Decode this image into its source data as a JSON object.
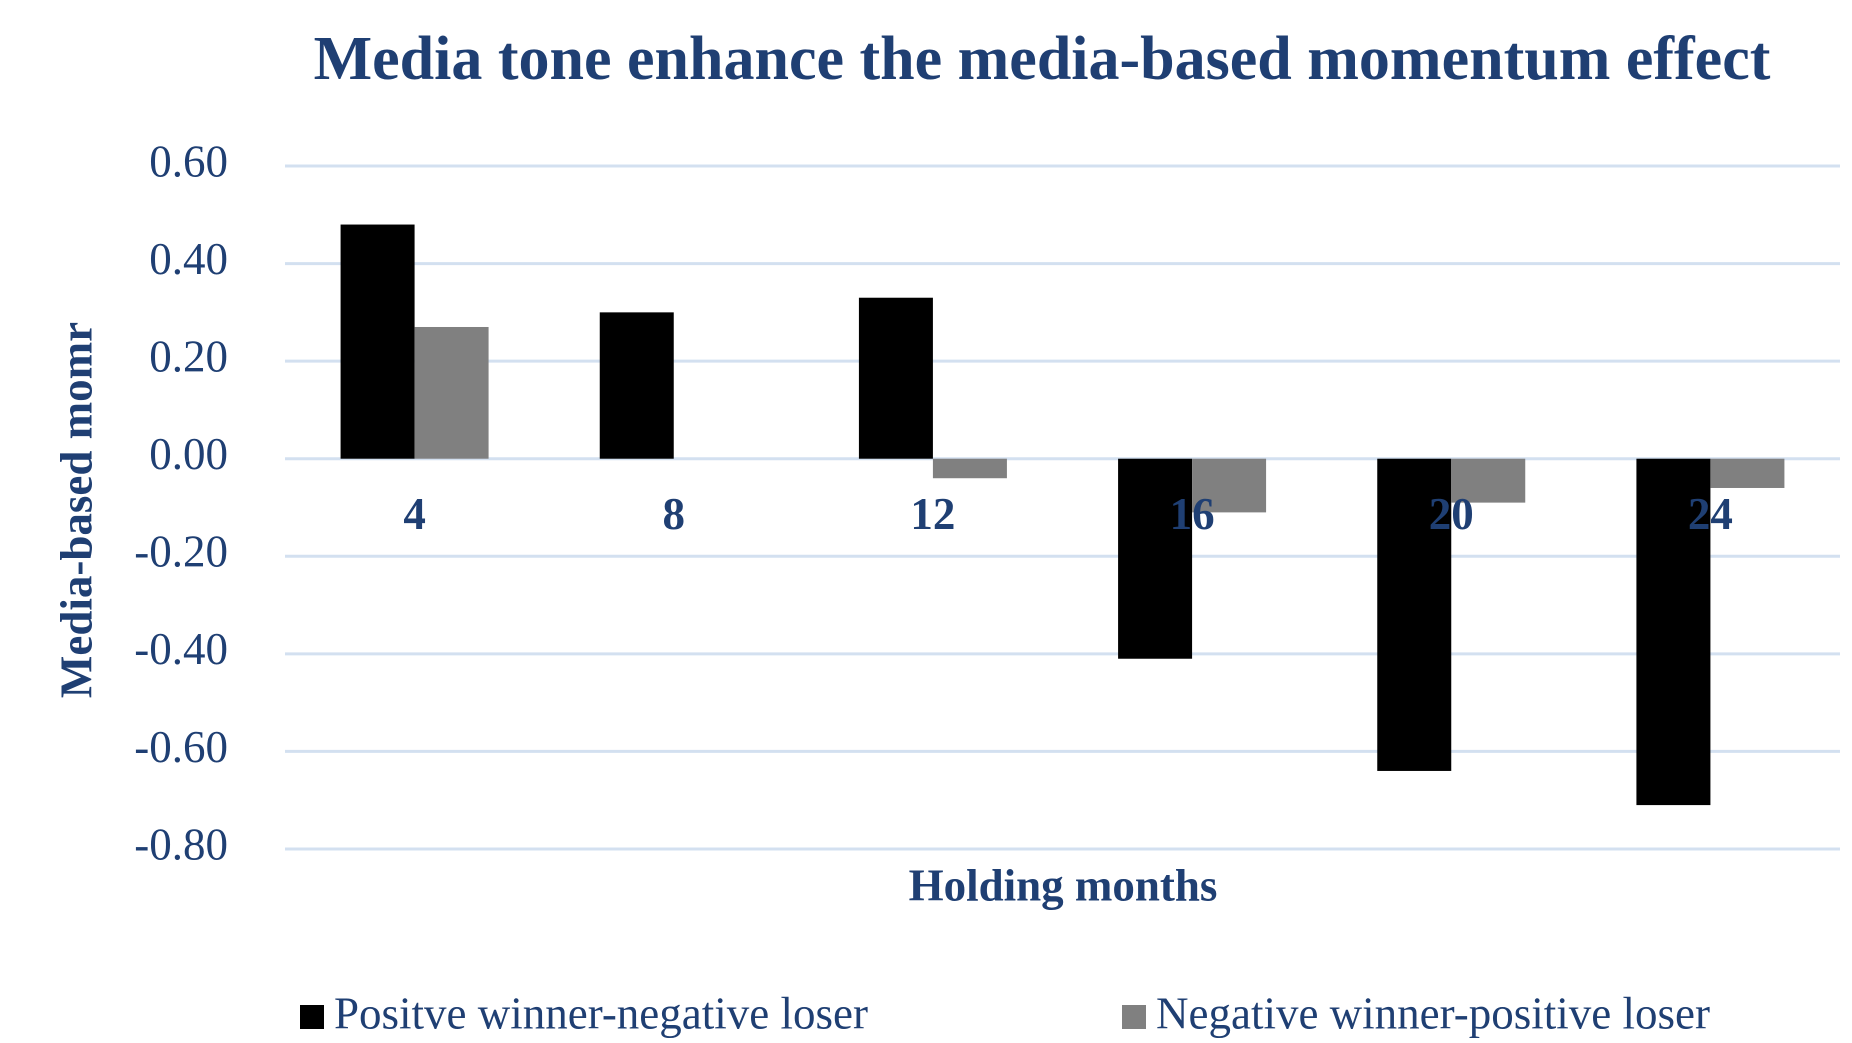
{
  "chart_data": {
    "type": "bar",
    "title": "Media tone enhance the media-based momentum effect",
    "x_label": "Holding months",
    "y_label": "Media-based momr",
    "categories": [
      "4",
      "8",
      "12",
      "16",
      "20",
      "24"
    ],
    "series": [
      {
        "name": "Positve winner-negative loser",
        "color": "#000000",
        "values": [
          0.48,
          0.3,
          0.33,
          -0.41,
          -0.64,
          -0.71
        ]
      },
      {
        "name": "Negative winner-positive loser",
        "color": "#808080",
        "values": [
          0.27,
          0,
          -0.04,
          -0.11,
          -0.09,
          -0.06
        ]
      }
    ],
    "ylim": [
      -0.8,
      0.6
    ],
    "yticks": [
      {
        "value": -0.8,
        "label": "-0.80"
      },
      {
        "value": -0.6,
        "label": "-0.60"
      },
      {
        "value": -0.4,
        "label": "-0.40"
      },
      {
        "value": -0.2,
        "label": "-0.20"
      },
      {
        "value": 0,
        "label": "0.00"
      },
      {
        "value": 0.2,
        "label": "0.20"
      },
      {
        "value": 0.4,
        "label": "0.40"
      },
      {
        "value": 0.6,
        "label": "0.60"
      }
    ],
    "grid": true,
    "legend": "bottom"
  }
}
